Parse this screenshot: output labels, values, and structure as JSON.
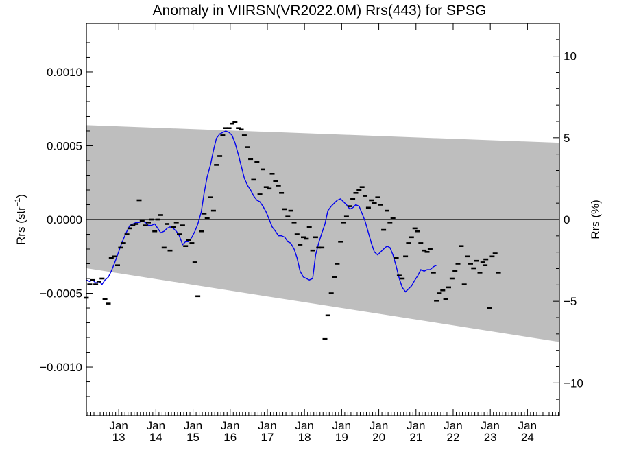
{
  "chart_data": {
    "type": "scatter",
    "title": "Anomaly in VIIRSN(VR2022.0M) Rrs(443) for SPSG",
    "ylabel_left": "Rrs (str",
    "ylabel_left_sup": "−1",
    "ylabel_left_close": ")",
    "ylabel_right": "Rrs (%)",
    "ylim": [
      -0.00133,
      0.00133
    ],
    "ylim_right": [
      -12,
      12
    ],
    "xlim": [
      2012.13,
      2024.86
    ],
    "y_ticks_left": [
      {
        "value": 0.001,
        "label": "0.0010"
      },
      {
        "value": 0.0005,
        "label": "0.0005"
      },
      {
        "value": 0.0,
        "label": "0.0000"
      },
      {
        "value": -0.0005,
        "label": "−0.0005"
      },
      {
        "value": -0.001,
        "label": "−0.0010"
      }
    ],
    "y_ticks_right": [
      {
        "value": 10,
        "label": "10"
      },
      {
        "value": 5,
        "label": "5"
      },
      {
        "value": 0,
        "label": "0"
      },
      {
        "value": -5,
        "label": "−5"
      },
      {
        "value": -10,
        "label": "−10"
      }
    ],
    "x_ticks": [
      {
        "value": 2013,
        "month": "Jan",
        "year": "13"
      },
      {
        "value": 2014,
        "month": "Jan",
        "year": "14"
      },
      {
        "value": 2015,
        "month": "Jan",
        "year": "15"
      },
      {
        "value": 2016,
        "month": "Jan",
        "year": "16"
      },
      {
        "value": 2017,
        "month": "Jan",
        "year": "17"
      },
      {
        "value": 2018,
        "month": "Jan",
        "year": "18"
      },
      {
        "value": 2019,
        "month": "Jan",
        "year": "19"
      },
      {
        "value": 2020,
        "month": "Jan",
        "year": "20"
      },
      {
        "value": 2021,
        "month": "Jan",
        "year": "21"
      },
      {
        "value": 2022,
        "month": "Jan",
        "year": "22"
      },
      {
        "value": 2023,
        "month": "Jan",
        "year": "23"
      },
      {
        "value": 2024,
        "month": "Jan",
        "year": "24"
      }
    ],
    "band": {
      "color": "#bebebe",
      "upper": [
        [
          2012.13,
          0.00064
        ],
        [
          2024.86,
          0.00052
        ]
      ],
      "lower": [
        [
          2012.13,
          -0.00033
        ],
        [
          2024.86,
          -0.00083
        ]
      ]
    },
    "zero_line": 0,
    "points_color": "#000000",
    "line_color": "#0000ee",
    "points": [
      [
        2012.13,
        -0.00053
      ],
      [
        2012.22,
        -0.00044
      ],
      [
        2012.3,
        -0.00041
      ],
      [
        2012.38,
        -0.00044
      ],
      [
        2012.47,
        -0.00042
      ],
      [
        2012.55,
        -0.0004
      ],
      [
        2012.63,
        -0.00054
      ],
      [
        2012.72,
        -0.00057
      ],
      [
        2012.8,
        -0.00026
      ],
      [
        2012.88,
        -0.00025
      ],
      [
        2012.97,
        -0.00031
      ],
      [
        2013.05,
        -0.00019
      ],
      [
        2013.13,
        -0.00016
      ],
      [
        2013.22,
        -0.0001
      ],
      [
        2013.3,
        -6e-05
      ],
      [
        2013.38,
        -4e-05
      ],
      [
        2013.47,
        -3e-05
      ],
      [
        2013.55,
        0.00013
      ],
      [
        2013.63,
        -1e-05
      ],
      [
        2013.72,
        -4e-05
      ],
      [
        2013.8,
        -2e-05
      ],
      [
        2013.88,
        0.0
      ],
      [
        2013.97,
        -8e-05
      ],
      [
        2014.05,
        0.0
      ],
      [
        2014.13,
        3e-05
      ],
      [
        2014.22,
        -0.00019
      ],
      [
        2014.3,
        -3e-05
      ],
      [
        2014.38,
        -0.00021
      ],
      [
        2014.47,
        -5e-05
      ],
      [
        2014.55,
        -2e-05
      ],
      [
        2014.63,
        -0.0001
      ],
      [
        2014.72,
        -4e-05
      ],
      [
        2014.8,
        -0.00018
      ],
      [
        2014.88,
        -0.00014
      ],
      [
        2014.97,
        -0.00016
      ],
      [
        2015.05,
        -0.00029
      ],
      [
        2015.13,
        -0.00052
      ],
      [
        2015.22,
        -8e-05
      ],
      [
        2015.3,
        4e-05
      ],
      [
        2015.38,
        1e-05
      ],
      [
        2015.47,
        0.00015
      ],
      [
        2015.55,
        6e-05
      ],
      [
        2015.63,
        0.00037
      ],
      [
        2015.72,
        0.00043
      ],
      [
        2015.8,
        0.00057
      ],
      [
        2015.88,
        0.00062
      ],
      [
        2015.97,
        0.00062
      ],
      [
        2016.05,
        0.00065
      ],
      [
        2016.13,
        0.00066
      ],
      [
        2016.22,
        0.00062
      ],
      [
        2016.3,
        0.00061
      ],
      [
        2016.38,
        0.00057
      ],
      [
        2016.47,
        0.00049
      ],
      [
        2016.55,
        0.00041
      ],
      [
        2016.63,
        0.00027
      ],
      [
        2016.72,
        0.00039
      ],
      [
        2016.8,
        0.00017
      ],
      [
        2016.88,
        0.00034
      ],
      [
        2016.97,
        0.00022
      ],
      [
        2017.05,
        0.00021
      ],
      [
        2017.13,
        0.00031
      ],
      [
        2017.22,
        0.00026
      ],
      [
        2017.3,
        0.00023
      ],
      [
        2017.38,
        0.00018
      ],
      [
        2017.47,
        7e-05
      ],
      [
        2017.55,
        2e-05
      ],
      [
        2017.63,
        6e-05
      ],
      [
        2017.72,
        -2e-05
      ],
      [
        2017.8,
        -0.0001
      ],
      [
        2017.88,
        -0.00017
      ],
      [
        2017.97,
        -0.00012
      ],
      [
        2018.05,
        -0.00013
      ],
      [
        2018.13,
        -5e-05
      ],
      [
        2018.22,
        -0.00021
      ],
      [
        2018.3,
        -0.00012
      ],
      [
        2018.38,
        -0.00019
      ],
      [
        2018.47,
        -0.00019
      ],
      [
        2018.55,
        -0.00081
      ],
      [
        2018.63,
        -0.00065
      ],
      [
        2018.72,
        -0.0005
      ],
      [
        2018.8,
        -0.00039
      ],
      [
        2018.88,
        -0.0003
      ],
      [
        2018.97,
        -0.00015
      ],
      [
        2019.05,
        -2e-05
      ],
      [
        2019.13,
        2e-05
      ],
      [
        2019.22,
        9e-05
      ],
      [
        2019.3,
        0.00014
      ],
      [
        2019.38,
        0.00018
      ],
      [
        2019.47,
        0.0002
      ],
      [
        2019.55,
        0.00022
      ],
      [
        2019.63,
        0.00016
      ],
      [
        2019.72,
        8e-05
      ],
      [
        2019.8,
        0.00013
      ],
      [
        2019.88,
        0.00011
      ],
      [
        2019.97,
        0.00015
      ],
      [
        2020.05,
        0.0001
      ],
      [
        2020.13,
        -7e-05
      ],
      [
        2020.22,
        6e-05
      ],
      [
        2020.3,
        -2e-05
      ],
      [
        2020.38,
        1e-05
      ],
      [
        2020.47,
        -0.00026
      ],
      [
        2020.55,
        -0.00038
      ],
      [
        2020.63,
        -0.0004
      ],
      [
        2020.72,
        -0.00025
      ],
      [
        2020.8,
        -0.00016
      ],
      [
        2020.88,
        -0.00012
      ],
      [
        2020.97,
        -6e-05
      ],
      [
        2021.05,
        -8e-05
      ],
      [
        2021.13,
        -0.00016
      ],
      [
        2021.22,
        -0.00021
      ],
      [
        2021.3,
        -0.00022
      ],
      [
        2021.38,
        -0.0002
      ],
      [
        2021.47,
        -0.00036
      ],
      [
        2021.55,
        -0.00055
      ],
      [
        2021.63,
        -0.0005
      ],
      [
        2021.72,
        -0.00048
      ],
      [
        2021.8,
        -0.00054
      ],
      [
        2021.88,
        -0.00046
      ],
      [
        2021.97,
        -0.0004
      ],
      [
        2022.05,
        -0.00035
      ],
      [
        2022.13,
        -0.0003
      ],
      [
        2022.22,
        -0.00018
      ],
      [
        2022.3,
        -0.00044
      ],
      [
        2022.38,
        -0.00025
      ],
      [
        2022.47,
        -0.0003
      ],
      [
        2022.55,
        -0.00033
      ],
      [
        2022.63,
        -0.00028
      ],
      [
        2022.72,
        -0.00036
      ],
      [
        2022.8,
        -0.00029
      ],
      [
        2022.86,
        -0.00031
      ],
      [
        2022.88,
        -0.00027
      ],
      [
        2022.97,
        -0.0006
      ],
      [
        2023.05,
        -0.00025
      ],
      [
        2023.13,
        -0.00023
      ],
      [
        2023.22,
        -0.00036
      ]
    ],
    "line": [
      [
        2012.13,
        -0.00041
      ],
      [
        2012.22,
        -0.00042
      ],
      [
        2012.3,
        -0.00041
      ],
      [
        2012.38,
        -0.00043
      ],
      [
        2012.47,
        -0.00042
      ],
      [
        2012.55,
        -0.00044
      ],
      [
        2012.63,
        -0.00041
      ],
      [
        2012.72,
        -0.00039
      ],
      [
        2012.8,
        -0.00035
      ],
      [
        2012.88,
        -0.0003
      ],
      [
        2012.97,
        -0.00024
      ],
      [
        2013.05,
        -0.00018
      ],
      [
        2013.13,
        -0.00013
      ],
      [
        2013.22,
        -8e-05
      ],
      [
        2013.3,
        -4e-05
      ],
      [
        2013.38,
        -3e-05
      ],
      [
        2013.47,
        -2e-05
      ],
      [
        2013.55,
        -2e-05
      ],
      [
        2013.63,
        -1e-05
      ],
      [
        2013.72,
        -2e-05
      ],
      [
        2013.8,
        -4e-05
      ],
      [
        2013.88,
        -4e-05
      ],
      [
        2013.97,
        -3e-05
      ],
      [
        2014.05,
        -6e-05
      ],
      [
        2014.13,
        -9e-05
      ],
      [
        2014.22,
        -8e-05
      ],
      [
        2014.3,
        -6e-05
      ],
      [
        2014.38,
        -5e-05
      ],
      [
        2014.47,
        -6e-05
      ],
      [
        2014.55,
        -8e-05
      ],
      [
        2014.63,
        -0.00011
      ],
      [
        2014.72,
        -0.00017
      ],
      [
        2014.8,
        -0.00015
      ],
      [
        2014.88,
        -0.00015
      ],
      [
        2014.97,
        -0.00012
      ],
      [
        2015.05,
        -8e-05
      ],
      [
        2015.13,
        -3e-05
      ],
      [
        2015.22,
        5e-05
      ],
      [
        2015.3,
        0.00018
      ],
      [
        2015.38,
        0.00029
      ],
      [
        2015.47,
        0.00037
      ],
      [
        2015.55,
        0.00047
      ],
      [
        2015.63,
        0.00055
      ],
      [
        2015.72,
        0.00058
      ],
      [
        2015.8,
        0.00059
      ],
      [
        2015.88,
        0.0006
      ],
      [
        2015.97,
        0.00059
      ],
      [
        2016.05,
        0.00057
      ],
      [
        2016.13,
        0.00052
      ],
      [
        2016.22,
        0.00044
      ],
      [
        2016.3,
        0.00036
      ],
      [
        2016.38,
        0.00028
      ],
      [
        2016.47,
        0.00023
      ],
      [
        2016.55,
        0.0002
      ],
      [
        2016.63,
        0.00016
      ],
      [
        2016.72,
        0.00013
      ],
      [
        2016.8,
        0.00012
      ],
      [
        2016.88,
        9e-05
      ],
      [
        2016.97,
        5e-05
      ],
      [
        2017.05,
        0.0
      ],
      [
        2017.13,
        -5e-05
      ],
      [
        2017.22,
        -8e-05
      ],
      [
        2017.3,
        -0.00011
      ],
      [
        2017.38,
        -0.00011
      ],
      [
        2017.47,
        -0.00012
      ],
      [
        2017.55,
        -0.00015
      ],
      [
        2017.63,
        -0.00016
      ],
      [
        2017.72,
        -0.0002
      ],
      [
        2017.8,
        -0.00026
      ],
      [
        2017.88,
        -0.00035
      ],
      [
        2017.97,
        -0.00039
      ],
      [
        2018.05,
        -0.0004
      ],
      [
        2018.13,
        -0.00041
      ],
      [
        2018.22,
        -0.0004
      ],
      [
        2018.3,
        -0.00024
      ],
      [
        2018.38,
        -0.00016
      ],
      [
        2018.47,
        -9e-05
      ],
      [
        2018.55,
        -3e-05
      ],
      [
        2018.63,
        6e-05
      ],
      [
        2018.72,
        9e-05
      ],
      [
        2018.8,
        0.00011
      ],
      [
        2018.88,
        0.00013
      ],
      [
        2018.97,
        0.00014
      ],
      [
        2019.05,
        0.00012
      ],
      [
        2019.13,
        0.0001
      ],
      [
        2019.22,
        7e-05
      ],
      [
        2019.3,
        8e-05
      ],
      [
        2019.38,
        0.0001
      ],
      [
        2019.47,
        9e-05
      ],
      [
        2019.55,
        4e-05
      ],
      [
        2019.63,
        -1e-05
      ],
      [
        2019.72,
        -9e-05
      ],
      [
        2019.8,
        -0.00016
      ],
      [
        2019.88,
        -0.00022
      ],
      [
        2019.97,
        -0.00024
      ],
      [
        2020.05,
        -0.00022
      ],
      [
        2020.13,
        -0.0002
      ],
      [
        2020.22,
        -0.00018
      ],
      [
        2020.3,
        -0.00019
      ],
      [
        2020.38,
        -0.00024
      ],
      [
        2020.47,
        -0.00032
      ],
      [
        2020.55,
        -0.0004
      ],
      [
        2020.63,
        -0.00046
      ],
      [
        2020.72,
        -0.00049
      ],
      [
        2020.8,
        -0.00047
      ],
      [
        2020.88,
        -0.00045
      ],
      [
        2020.97,
        -0.00041
      ],
      [
        2021.05,
        -0.00038
      ],
      [
        2021.13,
        -0.00034
      ],
      [
        2021.22,
        -0.00035
      ],
      [
        2021.3,
        -0.00034
      ],
      [
        2021.38,
        -0.00034
      ],
      [
        2021.47,
        -0.00032
      ],
      [
        2021.55,
        -0.00031
      ]
    ]
  }
}
